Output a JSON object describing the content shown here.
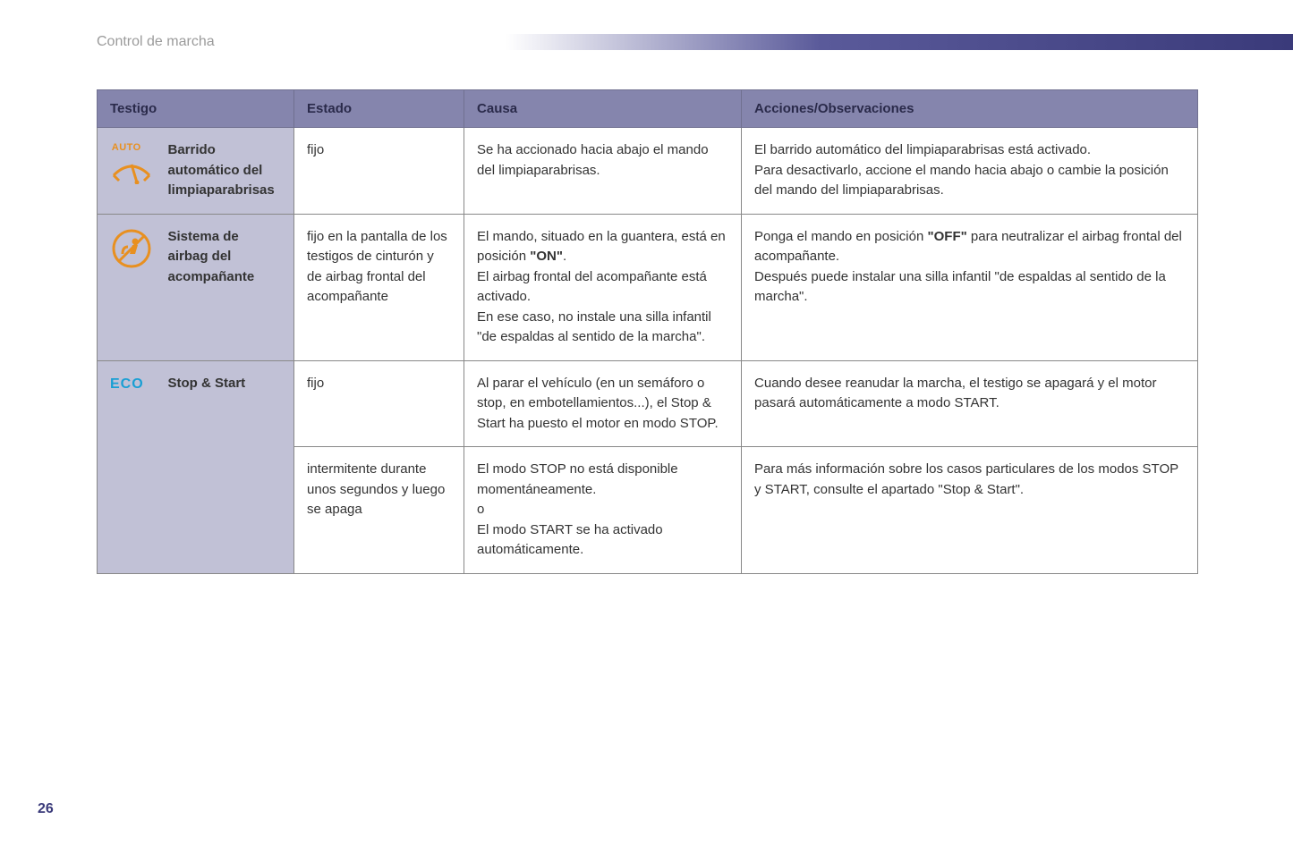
{
  "page": {
    "section_title": "Control de marcha",
    "page_number": "26"
  },
  "table": {
    "headers": {
      "testigo": "Testigo",
      "estado": "Estado",
      "causa": "Causa",
      "acciones": "Acciones/Observaciones"
    },
    "rows": [
      {
        "icon": "auto-wiper",
        "icon_auto_text": "AUTO",
        "label": "Barrido automático del limpiaparabrisas",
        "sub": [
          {
            "estado": "fijo",
            "causa_parts": [
              {
                "t": "Se ha accionado hacia abajo el mando del limpiaparabrisas."
              }
            ],
            "acciones_parts": [
              {
                "t": "El barrido automático del limpiaparabrisas está activado."
              },
              {
                "br": true
              },
              {
                "t": "Para desactivarlo, accione el mando hacia abajo o cambie la posición del mando del limpiaparabrisas."
              }
            ]
          }
        ]
      },
      {
        "icon": "airbag-off",
        "label": "Sistema de airbag del acompañante",
        "sub": [
          {
            "estado": "fijo en la pantalla de los testigos de cinturón y de airbag frontal del acompañante",
            "causa_parts": [
              {
                "t": "El mando, situado en la guantera, está en posición "
              },
              {
                "t": "\"ON\"",
                "b": true
              },
              {
                "t": "."
              },
              {
                "br": true
              },
              {
                "t": "El airbag frontal del acompañante está activado."
              },
              {
                "br": true
              },
              {
                "t": "En ese caso, no instale una silla infantil \"de espaldas al sentido de la marcha\"."
              }
            ],
            "acciones_parts": [
              {
                "t": "Ponga el mando en posición "
              },
              {
                "t": "\"OFF\"",
                "b": true
              },
              {
                "t": " para neutralizar el airbag frontal del acompañante."
              },
              {
                "br": true
              },
              {
                "t": "Después puede instalar una silla infantil \"de espaldas al sentido de la marcha\"."
              }
            ]
          }
        ]
      },
      {
        "icon": "eco",
        "icon_eco_text": "ECO",
        "label": "Stop & Start",
        "sub": [
          {
            "estado": "fijo",
            "causa_parts": [
              {
                "t": "Al parar el vehículo (en un semáforo o stop, en embotellamientos...), el Stop & Start ha puesto el motor en modo STOP."
              }
            ],
            "acciones_parts": [
              {
                "t": "Cuando desee reanudar la marcha, el testigo se apagará y el motor pasará automáticamente a modo START."
              }
            ]
          },
          {
            "estado": "intermitente durante unos segundos y luego se apaga",
            "causa_parts": [
              {
                "t": "El modo STOP no está disponible momentáneamente."
              },
              {
                "br": true
              },
              {
                "t": "o"
              },
              {
                "br": true
              },
              {
                "t": "El modo START se ha activado automáticamente."
              }
            ],
            "acciones_parts": [
              {
                "t": "Para más información sobre los casos particulares de los modos STOP y START, consulte el apartado \"Stop & Start\"."
              }
            ]
          }
        ]
      }
    ]
  },
  "colors": {
    "header_bg": "#8585ad",
    "label_bg": "#c1c1d6",
    "border": "#888888",
    "icon_orange": "#e89020",
    "icon_blue": "#1a9fd4",
    "gradient_dark": "#3a3a7a"
  }
}
